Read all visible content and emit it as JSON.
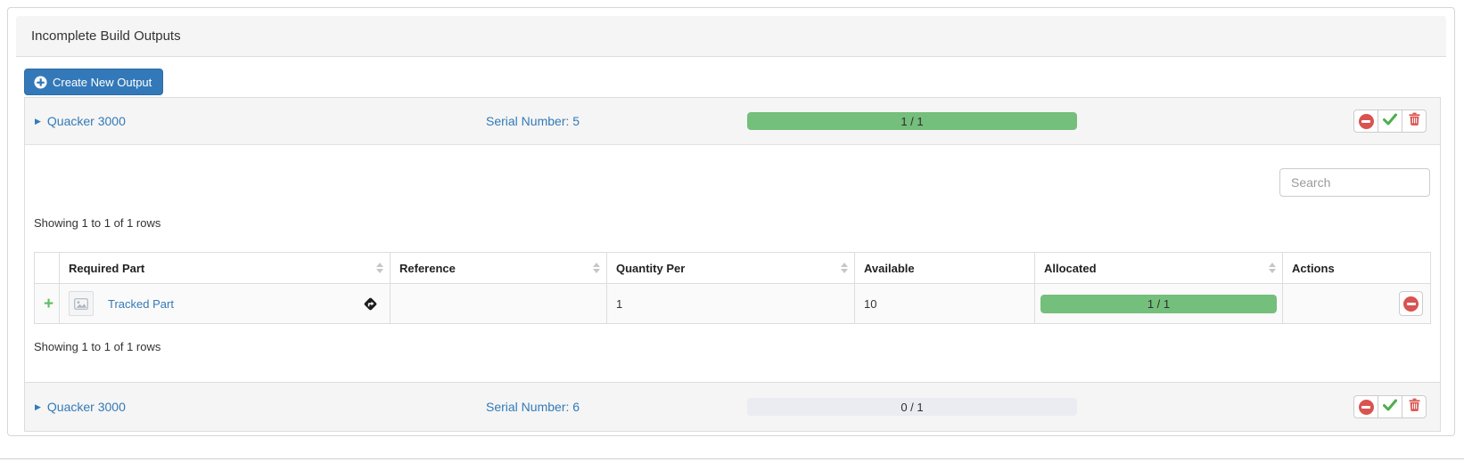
{
  "panel": {
    "title": "Incomplete Build Outputs"
  },
  "toolbar": {
    "create_button": "Create New Output"
  },
  "search": {
    "placeholder": "Search"
  },
  "outputs": [
    {
      "name": "Quacker 3000",
      "serial_label": "Serial Number: 5",
      "progress": {
        "label": "1 / 1",
        "pct": 100
      }
    },
    {
      "name": "Quacker 3000",
      "serial_label": "Serial Number: 6",
      "progress": {
        "label": "0 / 1",
        "pct": 0
      }
    }
  ],
  "allocation": {
    "showing_top": "Showing 1 to 1 of 1 rows",
    "showing_bottom": "Showing 1 to 1 of 1 rows",
    "columns": {
      "required_part": "Required Part",
      "reference": "Reference",
      "quantity_per": "Quantity Per",
      "available": "Available",
      "allocated": "Allocated",
      "actions": "Actions"
    },
    "rows": [
      {
        "part": "Tracked Part",
        "reference": "",
        "quantity_per": "1",
        "available": "10",
        "allocated": {
          "label": "1 / 1",
          "pct": 100
        }
      }
    ]
  },
  "icons": {
    "row_actions": [
      "unallocate-icon",
      "complete-icon",
      "delete-icon"
    ],
    "create_icon": "plus-circle-icon",
    "tracked_icon": "directions-icon"
  },
  "colors": {
    "accent_blue": "#3379b9",
    "link_blue": "#337ab7",
    "progress_green": "#74bf7b",
    "progress_track": "#ebecf1",
    "danger_red": "#d9534f",
    "check_green": "#4cae4c"
  }
}
